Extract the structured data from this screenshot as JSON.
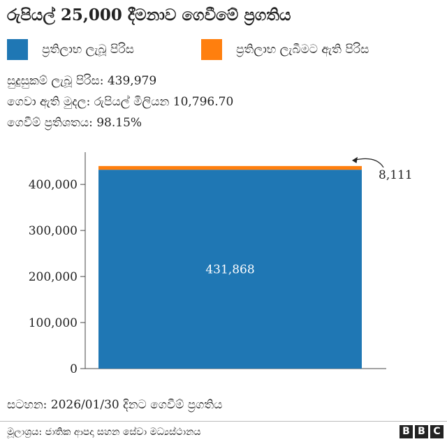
{
  "header": {
    "title": "රුපියල් 25,000 දීමනාව ගෙවීමේ ප්‍රගතිය"
  },
  "legend": [
    {
      "label": "ප්‍රතිලාභ ලැබූ පිරිස",
      "color": "#1f77b4"
    },
    {
      "label": "ප්‍රතිලාභ ලැබීමට ඇති පිරිස",
      "color": "#ff7f0e"
    }
  ],
  "stats": {
    "recipients_label": "සුදුසුකම් ලැබූ පිරිස:",
    "recipients_value": "439,979",
    "paid_label": "ගෙවා ඇති මුදල: රුපියල් මිලියන",
    "paid_value": "10,796.70",
    "percent_label": "ගෙවීම් ප්‍රතිශතය:",
    "percent_value": "98.15%"
  },
  "chart_data": {
    "type": "bar",
    "stacked": true,
    "categories": [
      ""
    ],
    "series": [
      {
        "name": "ප්‍රතිලාභ ලැබූ පිරිස",
        "values": [
          431868
        ],
        "color": "#1f77b4"
      },
      {
        "name": "ප්‍රතිලාභ ලැබීමට ඇති පිරිස",
        "values": [
          8111
        ],
        "color": "#ff7f0e"
      }
    ],
    "data_labels": [
      "431,868",
      "8,111"
    ],
    "ylim": [
      0,
      470000
    ],
    "yticks": [
      0,
      100000,
      200000,
      300000,
      400000
    ],
    "ytick_labels": [
      "0",
      "100,000",
      "200,000",
      "300,000",
      "400,000"
    ],
    "grid": false
  },
  "footnote": {
    "note": "සටහන: 2026/01/30 දිනට ගෙවීම් ප්‍රගතිය",
    "source": "මූලාශ්‍රය: ජාතික ආපදා සහන සේවා මධ්‍යස්ථානය",
    "brand_letters": [
      "B",
      "B",
      "C"
    ]
  }
}
